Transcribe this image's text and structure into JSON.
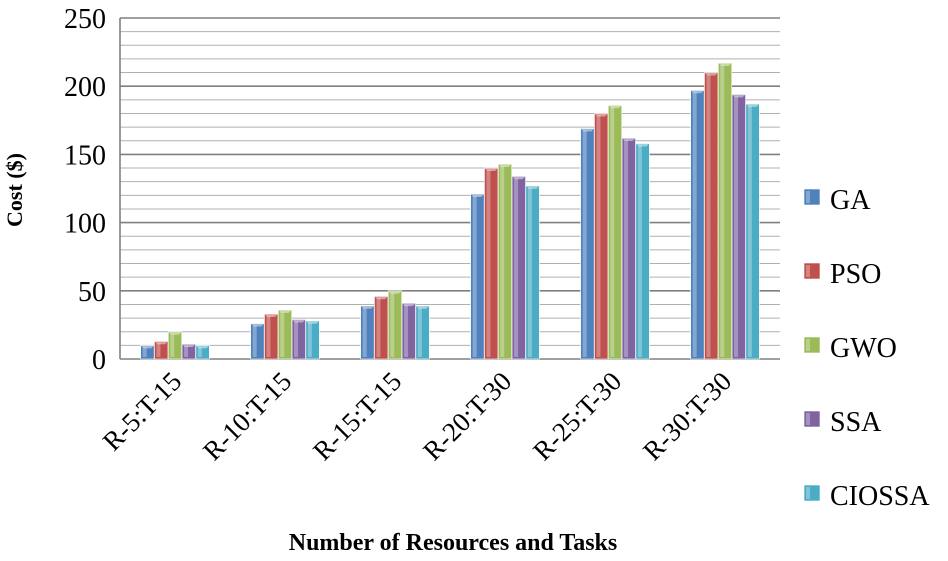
{
  "chart_data": {
    "type": "bar",
    "title": "",
    "xlabel": "Number of Resources and Tasks",
    "ylabel": "Cost ($)",
    "ylim": [
      0,
      250
    ],
    "yticks": [
      0,
      50,
      100,
      150,
      200,
      250
    ],
    "categories": [
      "R-5:T-15",
      "R-10:T-15",
      "R-15:T-15",
      "R-20:T-30",
      "R-25:T-30",
      "R-30:T-30"
    ],
    "series": [
      {
        "name": "GA",
        "color": "#4F81BD",
        "values": [
          10,
          26,
          39,
          121,
          169,
          197
        ]
      },
      {
        "name": "PSO",
        "color": "#C0504D",
        "values": [
          13,
          33,
          46,
          140,
          180,
          210
        ]
      },
      {
        "name": "GWO",
        "color": "#9BBB59",
        "values": [
          20,
          36,
          50,
          143,
          186,
          217
        ]
      },
      {
        "name": "SSA",
        "color": "#8064A2",
        "values": [
          11,
          29,
          41,
          134,
          162,
          194
        ]
      },
      {
        "name": "CIOSSA",
        "color": "#4BACC6",
        "values": [
          10,
          28,
          39,
          127,
          158,
          187
        ]
      }
    ],
    "grid": true,
    "legend_position": "right"
  }
}
